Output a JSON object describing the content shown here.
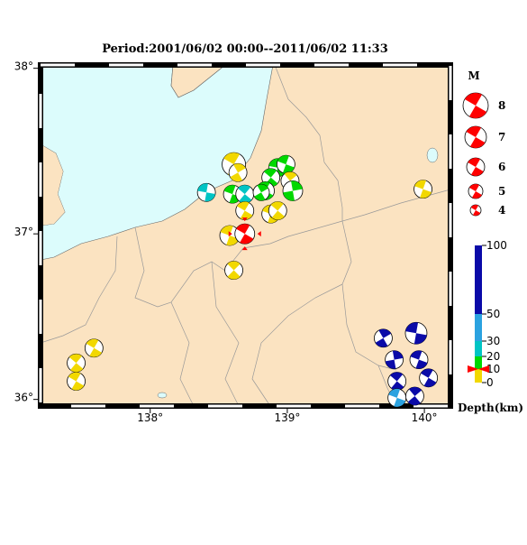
{
  "title": "Period:2001/06/02 00:00--2011/06/02 11:33",
  "map": {
    "xlim": [
      137.2,
      140.19
    ],
    "ylim": [
      35.96,
      38.02
    ],
    "xticks": [
      {
        "value": 138,
        "label": "138°"
      },
      {
        "value": 139,
        "label": "139°"
      },
      {
        "value": 140,
        "label": "140°"
      }
    ],
    "yticks": [
      {
        "value": 38,
        "label": "38°"
      },
      {
        "value": 37,
        "label": "37°"
      },
      {
        "value": 36,
        "label": "36°"
      }
    ],
    "events": [
      {
        "lon": 138.61,
        "lat": 37.42,
        "mag": 7.5,
        "depth": 5,
        "strike": 30
      },
      {
        "lon": 138.64,
        "lat": 37.37,
        "mag": 6,
        "depth": 5,
        "strike": 60
      },
      {
        "lon": 138.93,
        "lat": 37.4,
        "mag": 6,
        "depth": 15,
        "strike": 10
      },
      {
        "lon": 138.99,
        "lat": 37.42,
        "mag": 6,
        "depth": 15,
        "strike": 20
      },
      {
        "lon": 138.88,
        "lat": 37.34,
        "mag": 6,
        "depth": 15,
        "strike": 40
      },
      {
        "lon": 139.02,
        "lat": 37.32,
        "mag": 6,
        "depth": 5,
        "strike": 50
      },
      {
        "lon": 139.04,
        "lat": 37.26,
        "mag": 6.5,
        "depth": 15,
        "strike": 80
      },
      {
        "lon": 138.84,
        "lat": 37.26,
        "mag": 6,
        "depth": 15,
        "strike": 30
      },
      {
        "lon": 138.6,
        "lat": 37.24,
        "mag": 6,
        "depth": 15,
        "strike": 20
      },
      {
        "lon": 138.69,
        "lat": 37.24,
        "mag": 6,
        "depth": 25,
        "strike": 40
      },
      {
        "lon": 138.41,
        "lat": 37.25,
        "mag": 6,
        "depth": 25,
        "strike": 10
      },
      {
        "lon": 138.81,
        "lat": 37.25,
        "mag": 5.5,
        "depth": 15,
        "strike": 60
      },
      {
        "lon": 138.69,
        "lat": 37.14,
        "mag": 6,
        "depth": 5,
        "strike": 30
      },
      {
        "lon": 138.88,
        "lat": 37.12,
        "mag": 6,
        "depth": 5,
        "strike": 20
      },
      {
        "lon": 138.93,
        "lat": 37.14,
        "mag": 6,
        "depth": 5,
        "strike": 40
      },
      {
        "lon": 138.58,
        "lat": 36.99,
        "mag": 6.5,
        "depth": 5,
        "strike": 20
      },
      {
        "lon": 138.69,
        "lat": 37.0,
        "mag": 6.5,
        "depth": 10,
        "strike": 30,
        "color": "#ff0000"
      },
      {
        "lon": 138.61,
        "lat": 36.78,
        "mag": 6,
        "depth": 5,
        "strike": 45
      },
      {
        "lon": 139.99,
        "lat": 37.27,
        "mag": 6,
        "depth": 5,
        "strike": 20
      },
      {
        "lon": 137.59,
        "lat": 36.31,
        "mag": 6,
        "depth": 5,
        "strike": 30
      },
      {
        "lon": 137.46,
        "lat": 36.22,
        "mag": 6,
        "depth": 5,
        "strike": 40
      },
      {
        "lon": 137.46,
        "lat": 36.11,
        "mag": 6,
        "depth": 5,
        "strike": 30
      },
      {
        "lon": 139.7,
        "lat": 36.37,
        "mag": 6,
        "depth": 60,
        "strike": 60
      },
      {
        "lon": 139.94,
        "lat": 36.4,
        "mag": 7,
        "depth": 60,
        "strike": 10
      },
      {
        "lon": 139.78,
        "lat": 36.24,
        "mag": 6,
        "depth": 60,
        "strike": 80
      },
      {
        "lon": 139.96,
        "lat": 36.24,
        "mag": 6,
        "depth": 60,
        "strike": 20
      },
      {
        "lon": 139.8,
        "lat": 36.11,
        "mag": 6,
        "depth": 60,
        "strike": 40
      },
      {
        "lon": 140.03,
        "lat": 36.13,
        "mag": 6,
        "depth": 60,
        "strike": 30
      },
      {
        "lon": 139.93,
        "lat": 36.02,
        "mag": 6,
        "depth": 60,
        "strike": 50
      },
      {
        "lon": 139.8,
        "lat": 36.01,
        "mag": 6,
        "depth": 40,
        "strike": 20
      }
    ]
  },
  "magnitude_legend": {
    "label": "M",
    "values": [
      8,
      7,
      6,
      5,
      4
    ]
  },
  "depth_scale": {
    "label": "Depth(km)",
    "ticks": [
      100,
      50,
      30,
      20,
      10,
      0
    ],
    "colors": [
      "#0a0aa8",
      "#2ba2e0",
      "#00c4c4",
      "#00d800",
      "#f2d800"
    ]
  }
}
